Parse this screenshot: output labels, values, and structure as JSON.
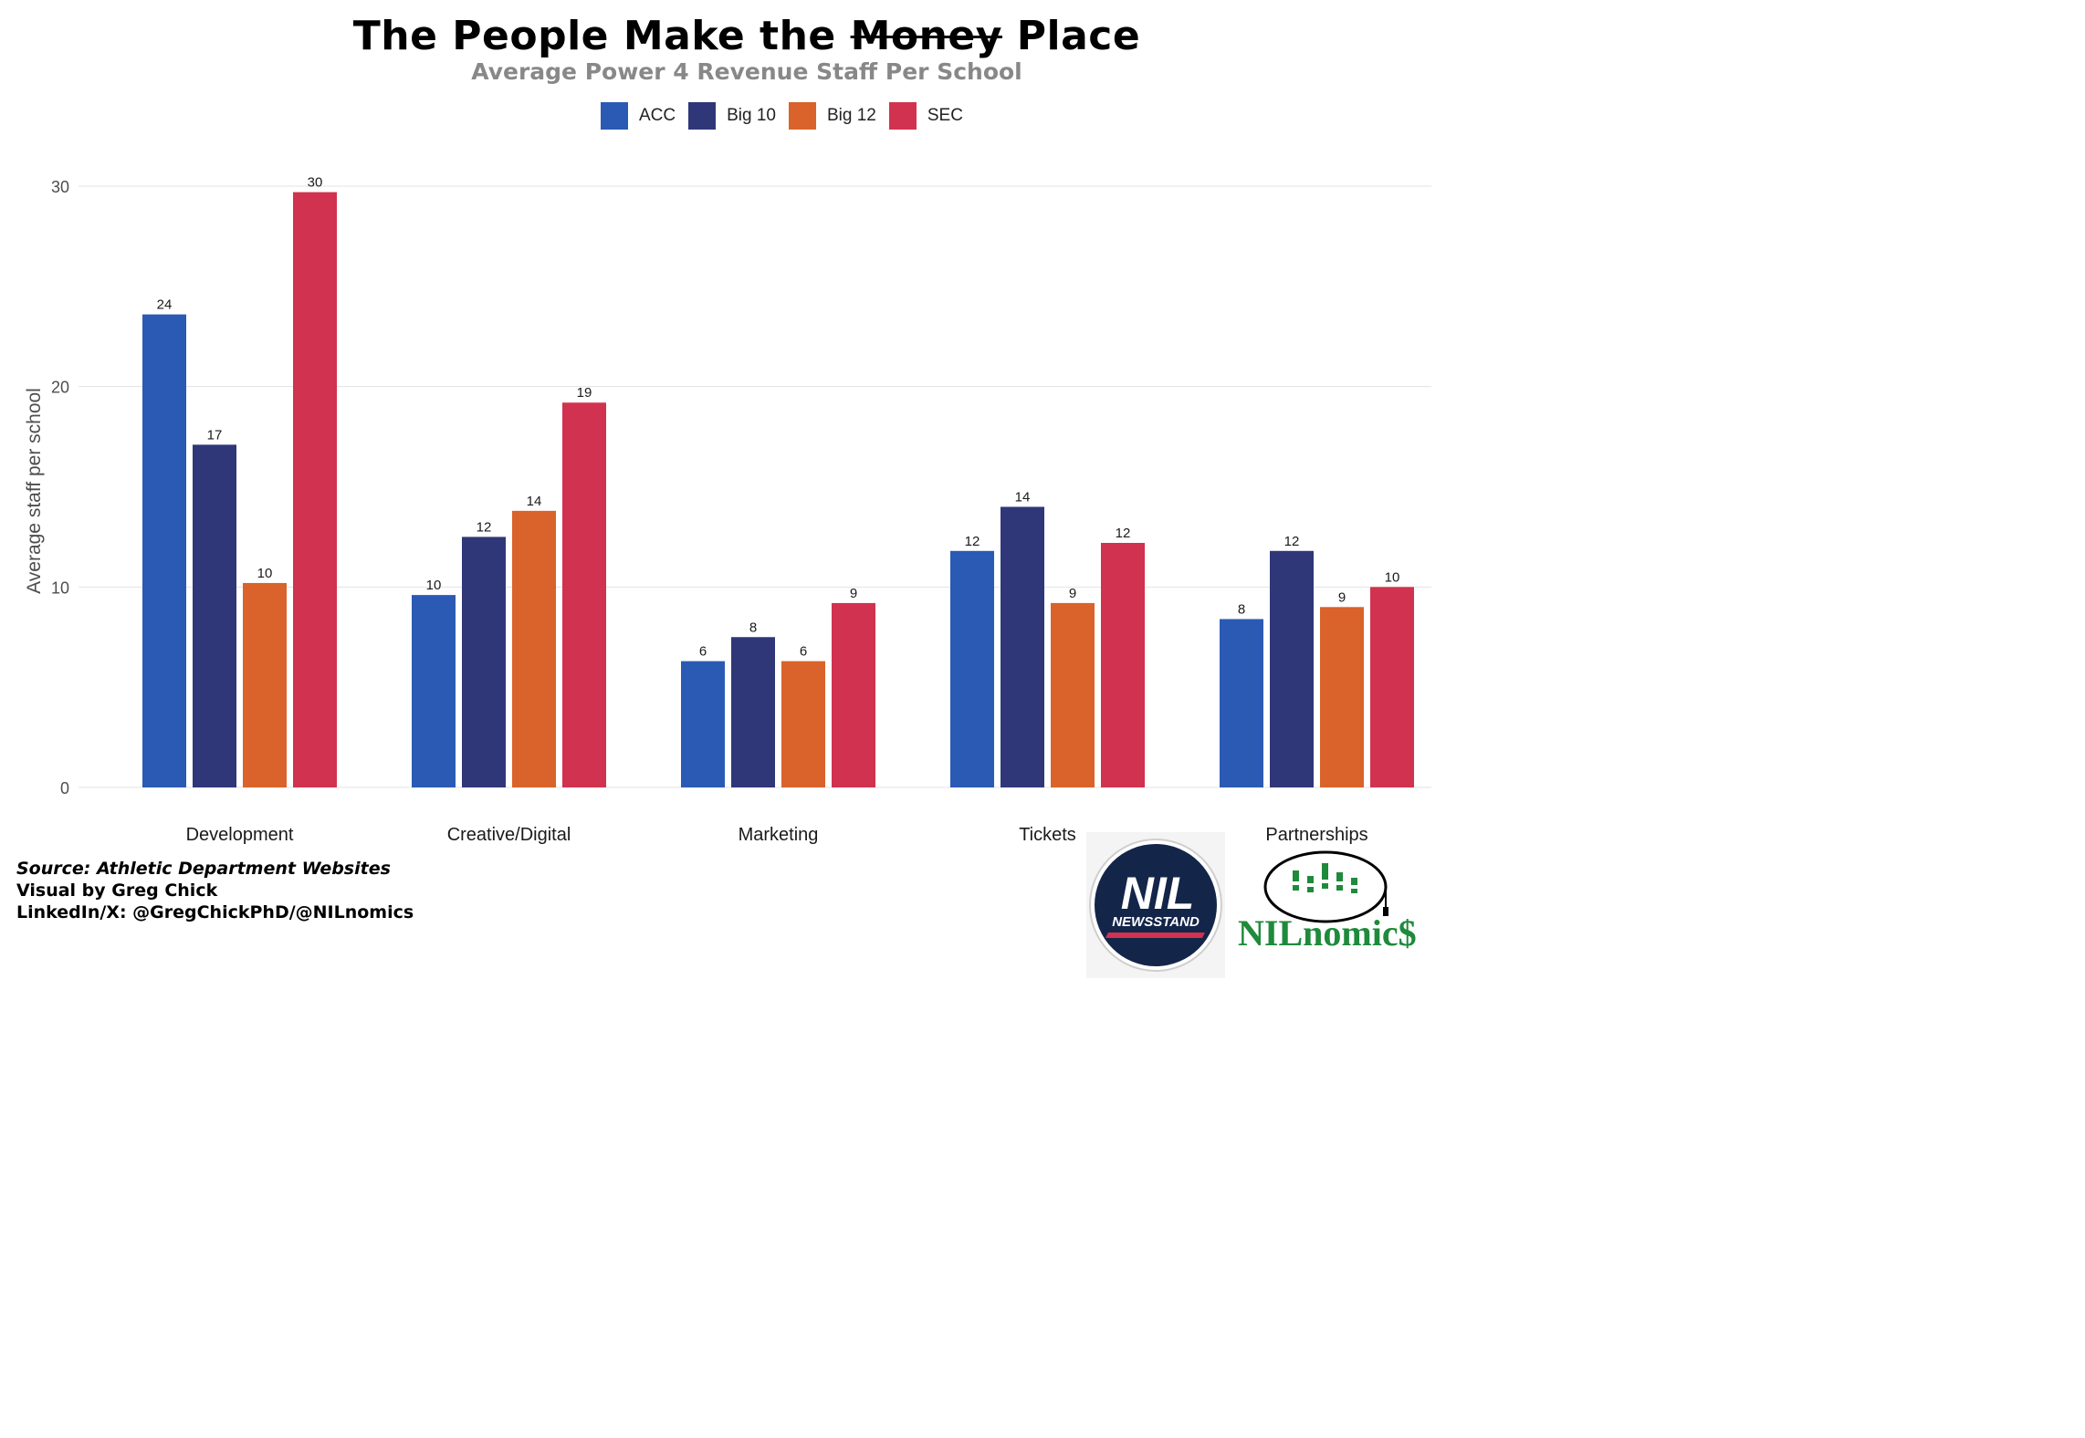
{
  "title": {
    "before": "The People Make the ",
    "struck": "Money",
    "after": " Place"
  },
  "subtitle": "Average Power 4 Revenue Staff Per School",
  "colors": {
    "ACC": "#2a5ab3",
    "Big 10": "#303778",
    "Big 12": "#d9632a",
    "SEC": "#d1324f",
    "grid": "#e3e3e3",
    "nilnomics_green": "#1f8a3c",
    "nil_navy": "#14254a",
    "nil_red": "#d1324f"
  },
  "legend": [
    {
      "label": "ACC"
    },
    {
      "label": "Big 10"
    },
    {
      "label": "Big 12"
    },
    {
      "label": "SEC"
    }
  ],
  "chart_data": {
    "type": "bar",
    "title": "The People Make the Money Place",
    "subtitle": "Average Power 4 Revenue Staff Per School",
    "xlabel": "",
    "ylabel": "Average staff per school",
    "ylim": [
      0,
      30
    ],
    "yticks": [
      0,
      10,
      20,
      30
    ],
    "grid": true,
    "legend_position": "top",
    "categories": [
      "Development",
      "Creative/Digital",
      "Marketing",
      "Tickets",
      "Partnerships"
    ],
    "series": [
      {
        "name": "ACC",
        "values": [
          23.6,
          9.6,
          6.3,
          11.8,
          8.4
        ],
        "labels": [
          "24",
          "10",
          "6",
          "12",
          "8"
        ]
      },
      {
        "name": "Big 10",
        "values": [
          17.1,
          12.5,
          7.5,
          14.0,
          11.8
        ],
        "labels": [
          "17",
          "12",
          "8",
          "14",
          "12"
        ]
      },
      {
        "name": "Big 12",
        "values": [
          10.2,
          13.8,
          6.3,
          9.2,
          9.0
        ],
        "labels": [
          "10",
          "14",
          "6",
          "9",
          "9"
        ]
      },
      {
        "name": "SEC",
        "values": [
          29.7,
          19.2,
          9.2,
          12.2,
          10.0
        ],
        "labels": [
          "30",
          "19",
          "9",
          "12",
          "10"
        ]
      }
    ]
  },
  "caption": {
    "source": "Source: Athletic Department Websites",
    "visual_by": "Visual by Greg Chick",
    "social": "LinkedIn/X: @GregChickPhD/@NILnomics"
  },
  "logos": {
    "nil_newsstand_top": "NIL",
    "nil_newsstand_bottom": "NEWSSTAND",
    "nilnomics_prefix": "NIL",
    "nilnomics_suffix": "nomic$"
  }
}
